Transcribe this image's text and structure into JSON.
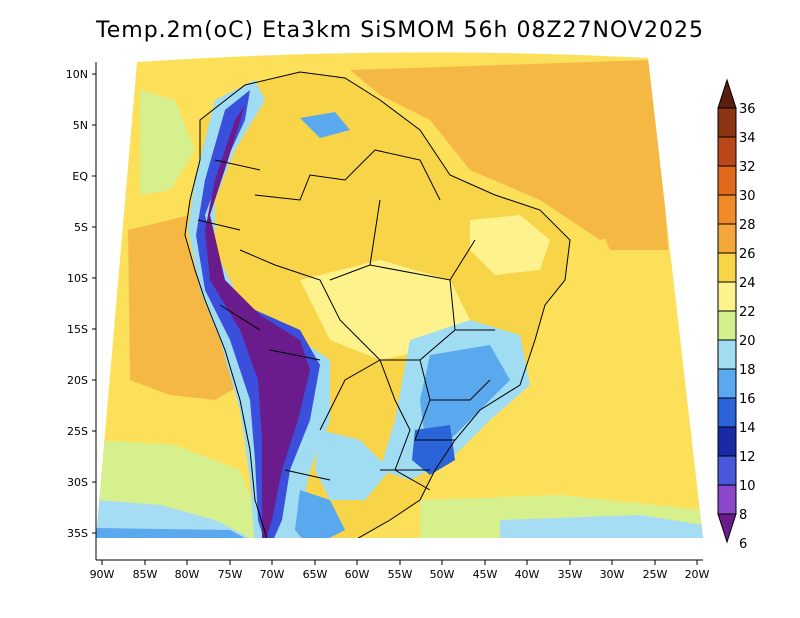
{
  "title": "Temp.2m(oC) Eta3km SiSMOM 56h 08Z27NOV2025",
  "y_ticks": [
    "10N",
    "5N",
    "EQ",
    "5S",
    "10S",
    "15S",
    "20S",
    "25S",
    "30S",
    "35S"
  ],
  "x_ticks": [
    "90W",
    "85W",
    "80W",
    "75W",
    "70W",
    "65W",
    "60W",
    "55W",
    "50W",
    "45W",
    "40W",
    "35W",
    "30W",
    "25W",
    "20W"
  ],
  "colorbar": {
    "labels": [
      "36",
      "34",
      "32",
      "30",
      "28",
      "26",
      "24",
      "22",
      "20",
      "18",
      "16",
      "14",
      "12",
      "10",
      "8",
      "6"
    ],
    "colors": [
      "#5a1e0e",
      "#8b3512",
      "#b8471a",
      "#e06a1c",
      "#f08c28",
      "#f5a83a",
      "#f8d448",
      "#fdf28c",
      "#d2f08c",
      "#a0dcf2",
      "#5aa8ee",
      "#2a64d8",
      "#1a2aa4",
      "#4a58dc",
      "#8a48c8",
      "#6a1c8c"
    ]
  },
  "map_colors": {
    "ocean_warm": "#f5b845",
    "ocean_mid": "#fde05a",
    "ocean_cool": "#d6f08e",
    "ocean_cold": "#a6dcf4",
    "land_main": "#f8d448",
    "land_light": "#fdf28c",
    "andes_high": "#6a1c8c",
    "andes_mid": "#3a50dc",
    "andes_low": "#a0dcf2",
    "southeast_cool": "#5aa8ee",
    "southeast_cold": "#2a64d8"
  }
}
